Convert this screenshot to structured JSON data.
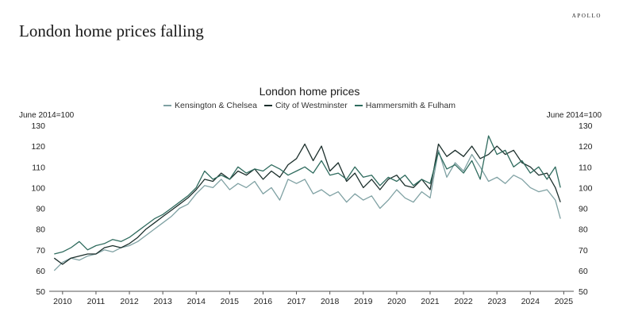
{
  "brand": "APOLLO",
  "headline": "London home prices falling",
  "chart_data": {
    "type": "line",
    "title": "London home prices",
    "ylabel_left": "June 2014=100",
    "ylabel_right": "June 2014=100",
    "xlabel": "",
    "ylim": [
      50,
      130
    ],
    "yticks": [
      50,
      60,
      70,
      80,
      90,
      100,
      110,
      120,
      130
    ],
    "xlim": [
      2009.6,
      2025.3
    ],
    "xticks": [
      2010,
      2011,
      2012,
      2013,
      2014,
      2015,
      2016,
      2017,
      2018,
      2019,
      2020,
      2021,
      2022,
      2023,
      2024,
      2025
    ],
    "grid": false,
    "legend_position": "top-center",
    "series": [
      {
        "name": "Kensington & Chelsea",
        "color": "#7fa1a3",
        "points": [
          [
            2009.75,
            60
          ],
          [
            2010.0,
            64
          ],
          [
            2010.25,
            66
          ],
          [
            2010.5,
            65
          ],
          [
            2010.75,
            67
          ],
          [
            2011.0,
            68
          ],
          [
            2011.25,
            70
          ],
          [
            2011.5,
            69
          ],
          [
            2011.75,
            71
          ],
          [
            2012.0,
            72
          ],
          [
            2012.25,
            74
          ],
          [
            2012.5,
            77
          ],
          [
            2012.75,
            80
          ],
          [
            2013.0,
            83
          ],
          [
            2013.25,
            86
          ],
          [
            2013.5,
            90
          ],
          [
            2013.75,
            92
          ],
          [
            2014.0,
            97
          ],
          [
            2014.25,
            101
          ],
          [
            2014.5,
            100
          ],
          [
            2014.75,
            104
          ],
          [
            2015.0,
            99
          ],
          [
            2015.25,
            102
          ],
          [
            2015.5,
            100
          ],
          [
            2015.75,
            103
          ],
          [
            2016.0,
            97
          ],
          [
            2016.25,
            100
          ],
          [
            2016.5,
            94
          ],
          [
            2016.75,
            104
          ],
          [
            2017.0,
            102
          ],
          [
            2017.25,
            104
          ],
          [
            2017.5,
            97
          ],
          [
            2017.75,
            99
          ],
          [
            2018.0,
            96
          ],
          [
            2018.25,
            98
          ],
          [
            2018.5,
            93
          ],
          [
            2018.75,
            97
          ],
          [
            2019.0,
            94
          ],
          [
            2019.25,
            96
          ],
          [
            2019.5,
            90
          ],
          [
            2019.75,
            94
          ],
          [
            2020.0,
            99
          ],
          [
            2020.25,
            95
          ],
          [
            2020.5,
            93
          ],
          [
            2020.75,
            98
          ],
          [
            2021.0,
            95
          ],
          [
            2021.25,
            118
          ],
          [
            2021.5,
            105
          ],
          [
            2021.75,
            112
          ],
          [
            2022.0,
            108
          ],
          [
            2022.25,
            116
          ],
          [
            2022.5,
            110
          ],
          [
            2022.75,
            103
          ],
          [
            2023.0,
            105
          ],
          [
            2023.25,
            102
          ],
          [
            2023.5,
            106
          ],
          [
            2023.75,
            104
          ],
          [
            2024.0,
            100
          ],
          [
            2024.25,
            98
          ],
          [
            2024.5,
            99
          ],
          [
            2024.75,
            94
          ],
          [
            2024.9,
            85
          ]
        ]
      },
      {
        "name": "City of Westminster",
        "color": "#1c2f2c",
        "points": [
          [
            2009.75,
            66
          ],
          [
            2010.0,
            63
          ],
          [
            2010.25,
            66
          ],
          [
            2010.5,
            67
          ],
          [
            2010.75,
            68
          ],
          [
            2011.0,
            68
          ],
          [
            2011.25,
            71
          ],
          [
            2011.5,
            72
          ],
          [
            2011.75,
            71
          ],
          [
            2012.0,
            73
          ],
          [
            2012.25,
            76
          ],
          [
            2012.5,
            80
          ],
          [
            2012.75,
            83
          ],
          [
            2013.0,
            86
          ],
          [
            2013.25,
            89
          ],
          [
            2013.5,
            92
          ],
          [
            2013.75,
            95
          ],
          [
            2014.0,
            99
          ],
          [
            2014.25,
            104
          ],
          [
            2014.5,
            103
          ],
          [
            2014.75,
            107
          ],
          [
            2015.0,
            104
          ],
          [
            2015.25,
            108
          ],
          [
            2015.5,
            106
          ],
          [
            2015.75,
            109
          ],
          [
            2016.0,
            104
          ],
          [
            2016.25,
            108
          ],
          [
            2016.5,
            105
          ],
          [
            2016.75,
            111
          ],
          [
            2017.0,
            114
          ],
          [
            2017.25,
            121
          ],
          [
            2017.5,
            113
          ],
          [
            2017.75,
            120
          ],
          [
            2018.0,
            108
          ],
          [
            2018.25,
            112
          ],
          [
            2018.5,
            103
          ],
          [
            2018.75,
            107
          ],
          [
            2019.0,
            100
          ],
          [
            2019.25,
            104
          ],
          [
            2019.5,
            99
          ],
          [
            2019.75,
            104
          ],
          [
            2020.0,
            106
          ],
          [
            2020.25,
            101
          ],
          [
            2020.5,
            100
          ],
          [
            2020.75,
            104
          ],
          [
            2021.0,
            99
          ],
          [
            2021.25,
            121
          ],
          [
            2021.5,
            115
          ],
          [
            2021.75,
            118
          ],
          [
            2022.0,
            115
          ],
          [
            2022.25,
            120
          ],
          [
            2022.5,
            114
          ],
          [
            2022.75,
            116
          ],
          [
            2023.0,
            120
          ],
          [
            2023.25,
            116
          ],
          [
            2023.5,
            118
          ],
          [
            2023.75,
            112
          ],
          [
            2024.0,
            110
          ],
          [
            2024.25,
            106
          ],
          [
            2024.5,
            107
          ],
          [
            2024.75,
            100
          ],
          [
            2024.9,
            93
          ]
        ]
      },
      {
        "name": "Hammersmith & Fulham",
        "color": "#2f6b5e",
        "points": [
          [
            2009.75,
            68
          ],
          [
            2010.0,
            69
          ],
          [
            2010.25,
            71
          ],
          [
            2010.5,
            74
          ],
          [
            2010.75,
            70
          ],
          [
            2011.0,
            72
          ],
          [
            2011.25,
            73
          ],
          [
            2011.5,
            75
          ],
          [
            2011.75,
            74
          ],
          [
            2012.0,
            76
          ],
          [
            2012.25,
            79
          ],
          [
            2012.5,
            82
          ],
          [
            2012.75,
            85
          ],
          [
            2013.0,
            87
          ],
          [
            2013.25,
            90
          ],
          [
            2013.5,
            93
          ],
          [
            2013.75,
            96
          ],
          [
            2014.0,
            100
          ],
          [
            2014.25,
            108
          ],
          [
            2014.5,
            104
          ],
          [
            2014.75,
            106
          ],
          [
            2015.0,
            104
          ],
          [
            2015.25,
            110
          ],
          [
            2015.5,
            107
          ],
          [
            2015.75,
            109
          ],
          [
            2016.0,
            108
          ],
          [
            2016.25,
            111
          ],
          [
            2016.5,
            109
          ],
          [
            2016.75,
            106
          ],
          [
            2017.0,
            108
          ],
          [
            2017.25,
            110
          ],
          [
            2017.5,
            107
          ],
          [
            2017.75,
            113
          ],
          [
            2018.0,
            106
          ],
          [
            2018.25,
            107
          ],
          [
            2018.5,
            104
          ],
          [
            2018.75,
            110
          ],
          [
            2019.0,
            105
          ],
          [
            2019.25,
            106
          ],
          [
            2019.5,
            101
          ],
          [
            2019.75,
            105
          ],
          [
            2020.0,
            103
          ],
          [
            2020.25,
            106
          ],
          [
            2020.5,
            101
          ],
          [
            2020.75,
            104
          ],
          [
            2021.0,
            102
          ],
          [
            2021.25,
            117
          ],
          [
            2021.5,
            109
          ],
          [
            2021.75,
            111
          ],
          [
            2022.0,
            107
          ],
          [
            2022.25,
            113
          ],
          [
            2022.5,
            104
          ],
          [
            2022.75,
            125
          ],
          [
            2023.0,
            116
          ],
          [
            2023.25,
            118
          ],
          [
            2023.5,
            110
          ],
          [
            2023.75,
            113
          ],
          [
            2024.0,
            107
          ],
          [
            2024.25,
            110
          ],
          [
            2024.5,
            104
          ],
          [
            2024.75,
            110
          ],
          [
            2024.9,
            100
          ]
        ]
      }
    ]
  }
}
